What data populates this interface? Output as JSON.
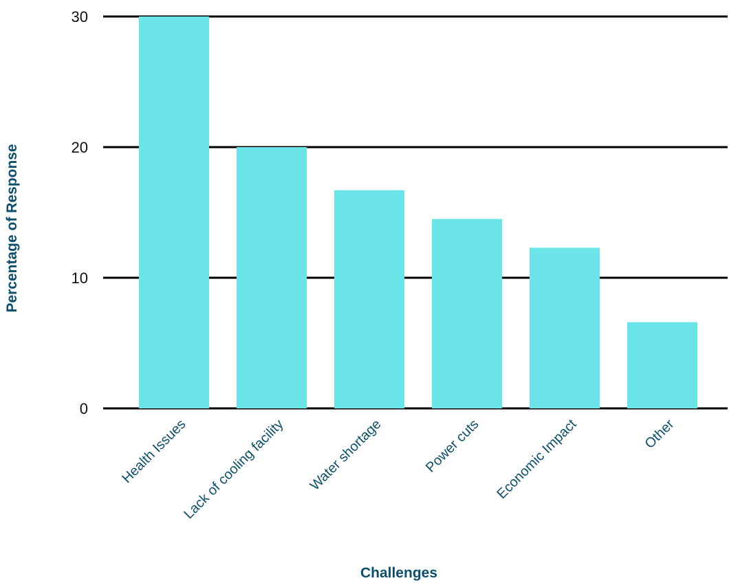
{
  "chart_data": {
    "type": "bar",
    "categories": [
      "Health Issues",
      "Lack of cooling facility",
      "Water shortage",
      "Power cuts",
      "Economic Impact",
      "Other"
    ],
    "values": [
      30,
      20,
      16.7,
      14.5,
      12.3,
      6.6
    ],
    "xlabel": "Challenges",
    "ylabel": "Percentage of Response",
    "ylim": [
      0,
      30
    ],
    "yticks": [
      0,
      10,
      20,
      30
    ],
    "grid": "horizontal",
    "colors": {
      "bar": "#6ce5e8",
      "grid": "#000000",
      "axis_title": "#0b4f6c",
      "category_label": "#0b4f6c",
      "tick_label": "#111111"
    }
  }
}
